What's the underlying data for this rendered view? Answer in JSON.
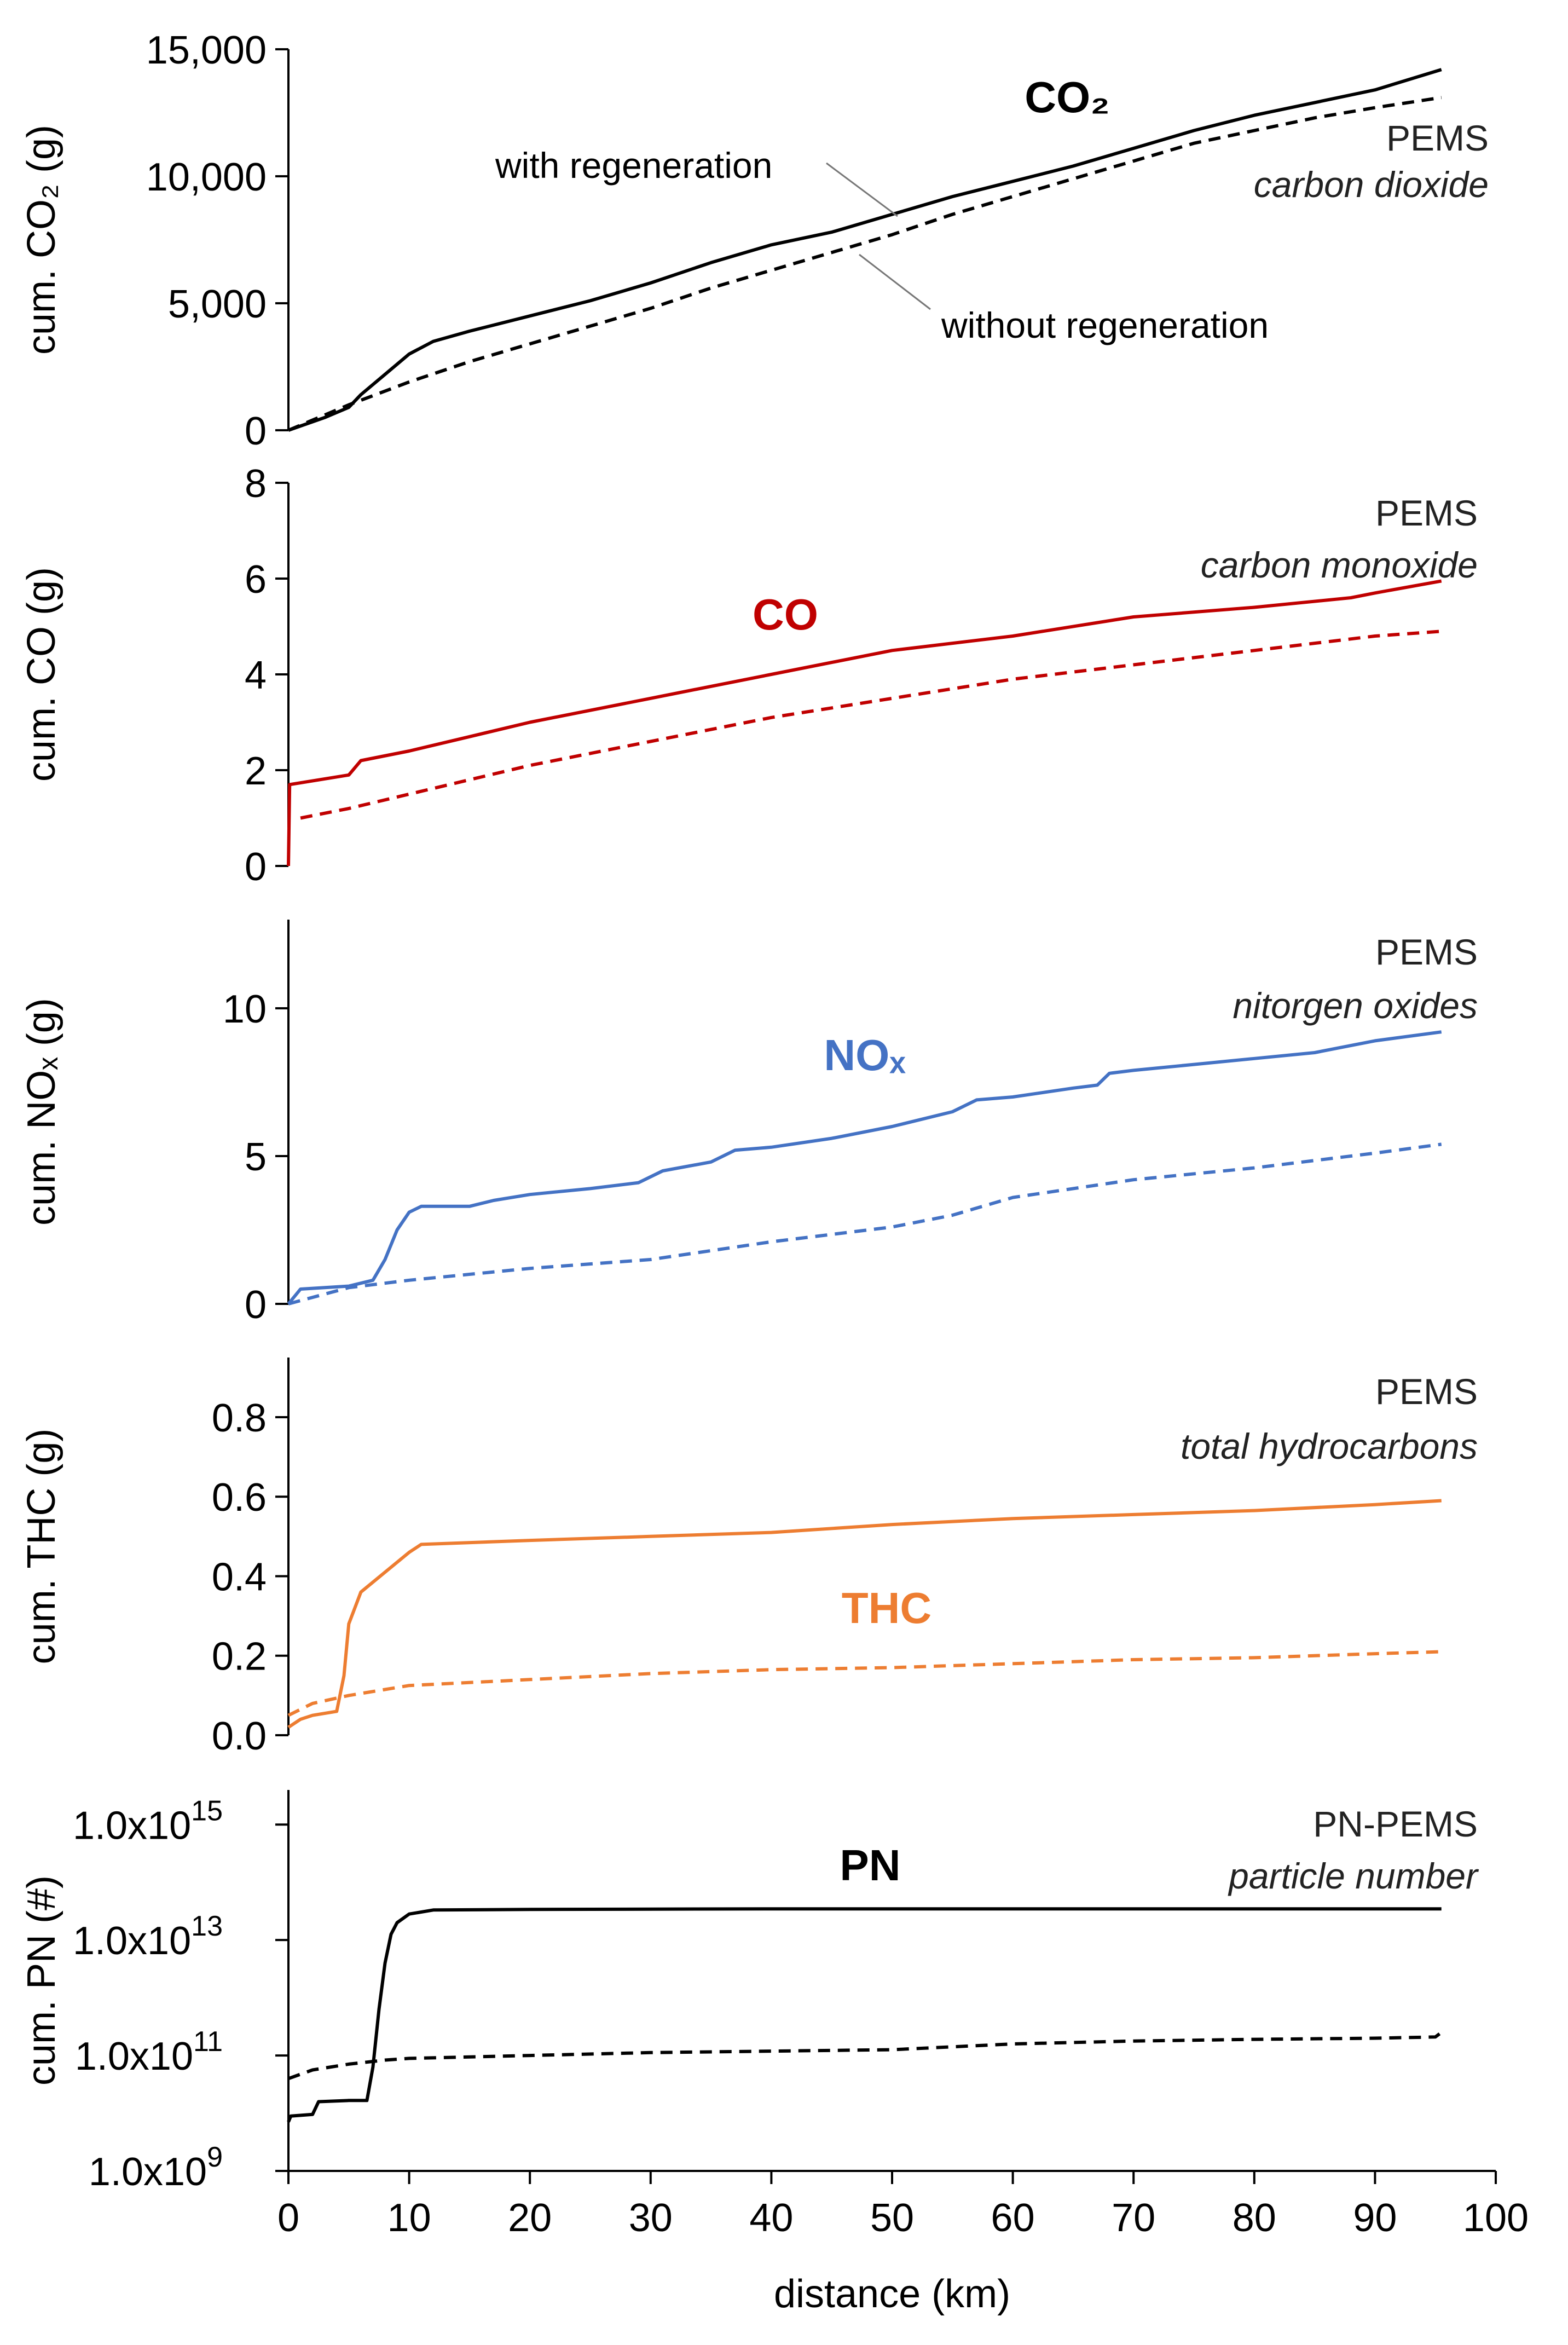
{
  "chart_data": {
    "type": "line",
    "xlabel": "distance (km)",
    "xlim": [
      0,
      100
    ],
    "xticks": [
      0,
      10,
      20,
      30,
      40,
      50,
      60,
      70,
      80,
      90,
      100
    ],
    "legend": {
      "with_label": "with regeneration",
      "without_label": "without regeneration"
    },
    "panels": [
      {
        "id": "co2",
        "ylabel": "cum. CO₂ (g)",
        "ylim": [
          0,
          15000
        ],
        "scale": "linear",
        "yticks": [
          "0",
          "5,000",
          "10,000",
          "15,000"
        ],
        "ytick_values": [
          0,
          5000,
          10000,
          15000
        ],
        "color": "#000000",
        "title": "CO₂",
        "source": "PEMS",
        "source_desc": "carbon dioxide",
        "series": [
          {
            "name": "with regeneration",
            "style": "solid",
            "x": [
              0,
              3,
              5,
              6,
              8,
              10,
              12,
              15,
              20,
              25,
              30,
              35,
              40,
              45,
              50,
              55,
              60,
              65,
              70,
              75,
              80,
              85,
              90,
              95.5
            ],
            "y": [
              0,
              500,
              900,
              1400,
              2200,
              3000,
              3500,
              3900,
              4500,
              5100,
              5800,
              6600,
              7300,
              7800,
              8500,
              9200,
              9800,
              10400,
              11100,
              11800,
              12400,
              12900,
              13400,
              14200
            ]
          },
          {
            "name": "without regeneration",
            "style": "dashed",
            "x": [
              0,
              5,
              10,
              15,
              20,
              25,
              30,
              35,
              40,
              45,
              50,
              55,
              60,
              65,
              70,
              75,
              80,
              85,
              90,
              95.5
            ],
            "y": [
              0,
              1000,
              1900,
              2700,
              3400,
              4100,
              4800,
              5600,
              6300,
              7000,
              7700,
              8500,
              9200,
              9900,
              10600,
              11300,
              11800,
              12300,
              12700,
              13100
            ]
          }
        ]
      },
      {
        "id": "co",
        "ylabel": "cum. CO (g)",
        "ylim": [
          0,
          8
        ],
        "scale": "linear",
        "yticks": [
          "0",
          "2",
          "4",
          "6",
          "8"
        ],
        "ytick_values": [
          0,
          2,
          4,
          6,
          8
        ],
        "color": "#c00000",
        "title": "CO",
        "source": "PEMS",
        "source_desc": "carbon monoxide",
        "series": [
          {
            "name": "with regeneration",
            "style": "solid",
            "x": [
              0,
              0.1,
              5,
              6,
              10,
              15,
              20,
              30,
              40,
              50,
              60,
              70,
              80,
              88,
              90,
              95.5
            ],
            "y": [
              0,
              1.7,
              1.9,
              2.2,
              2.4,
              2.7,
              3.0,
              3.5,
              4.0,
              4.5,
              4.8,
              5.2,
              5.4,
              5.6,
              5.7,
              5.95
            ]
          },
          {
            "name": "without regeneration",
            "style": "dashed",
            "x": [
              1,
              5,
              10,
              20,
              30,
              40,
              50,
              60,
              70,
              80,
              90,
              95.5
            ],
            "y": [
              1.0,
              1.2,
              1.5,
              2.1,
              2.6,
              3.1,
              3.5,
              3.9,
              4.2,
              4.5,
              4.8,
              4.9
            ]
          }
        ]
      },
      {
        "id": "nox",
        "ylabel": "cum. NOₓ (g)",
        "ylim": [
          0,
          13
        ],
        "scale": "linear",
        "yticks": [
          "0",
          "5",
          "10"
        ],
        "ytick_values": [
          0,
          5,
          10
        ],
        "color": "#4472c4",
        "title": "NOₓ",
        "source": "PEMS",
        "source_desc": "nitorgen oxides",
        "series": [
          {
            "name": "with regeneration",
            "style": "solid",
            "x": [
              0,
              1,
              5,
              7,
              8,
              9,
              10,
              11,
              12,
              15,
              17,
              20,
              25,
              29,
              31,
              35,
              37,
              40,
              45,
              50,
              55,
              57,
              60,
              65,
              67,
              68,
              70,
              75,
              80,
              85,
              90,
              95.5
            ],
            "y": [
              0,
              0.5,
              0.6,
              0.8,
              1.5,
              2.5,
              3.1,
              3.3,
              3.3,
              3.3,
              3.5,
              3.7,
              3.9,
              4.1,
              4.5,
              4.8,
              5.2,
              5.3,
              5.6,
              6.0,
              6.5,
              6.9,
              7.0,
              7.3,
              7.4,
              7.8,
              7.9,
              8.1,
              8.3,
              8.5,
              8.9,
              9.2
            ]
          },
          {
            "name": "without regeneration",
            "style": "dashed",
            "x": [
              0,
              5,
              10,
              20,
              30,
              40,
              50,
              55,
              60,
              70,
              80,
              90,
              95.5
            ],
            "y": [
              0,
              0.55,
              0.8,
              1.2,
              1.5,
              2.1,
              2.6,
              3.0,
              3.6,
              4.2,
              4.6,
              5.1,
              5.4
            ]
          }
        ]
      },
      {
        "id": "thc",
        "ylabel": "cum. THC (g)",
        "ylim": [
          0,
          0.95
        ],
        "scale": "linear",
        "yticks": [
          "0.0",
          "0.2",
          "0.4",
          "0.6",
          "0.8"
        ],
        "ytick_values": [
          0,
          0.2,
          0.4,
          0.6,
          0.8
        ],
        "color": "#ed7d31",
        "title": "THC",
        "source": "PEMS",
        "source_desc": "total hydrocarbons",
        "series": [
          {
            "name": "with regeneration",
            "style": "solid",
            "x": [
              0,
              1,
              2,
              4,
              4.6,
              5,
              6,
              8,
              10,
              11,
              20,
              30,
              40,
              50,
              60,
              70,
              80,
              90,
              95.5
            ],
            "y": [
              0.02,
              0.04,
              0.05,
              0.06,
              0.15,
              0.28,
              0.36,
              0.41,
              0.46,
              0.48,
              0.49,
              0.5,
              0.51,
              0.53,
              0.545,
              0.555,
              0.565,
              0.58,
              0.59
            ]
          },
          {
            "name": "without regeneration",
            "style": "dashed",
            "x": [
              0,
              2,
              5,
              10,
              20,
              30,
              40,
              50,
              60,
              70,
              80,
              90,
              95.5
            ],
            "y": [
              0.05,
              0.08,
              0.1,
              0.125,
              0.14,
              0.155,
              0.165,
              0.17,
              0.18,
              0.19,
              0.195,
              0.205,
              0.21
            ]
          }
        ]
      },
      {
        "id": "pn",
        "ylabel": "cum. PN (#)",
        "ylim": [
          9,
          15.6
        ],
        "scale": "log10",
        "yticks": [
          "1.0x10",
          "1.0x10",
          "1.0x10",
          "1.0x10"
        ],
        "ytick_exponents": [
          "9",
          "11",
          "13",
          "15"
        ],
        "ytick_values": [
          9,
          11,
          13,
          15
        ],
        "color": "#000000",
        "title": "PN",
        "source": "PN-PEMS",
        "source_desc": "particle number",
        "series": [
          {
            "name": "with regeneration",
            "style": "solid",
            "x": [
              0,
              0.2,
              2,
              2.5,
              5,
              6.5,
              7,
              7.5,
              8,
              8.5,
              9,
              10,
              12,
              20,
              40,
              60,
              80,
              95.5
            ],
            "y_log10": [
              9.85,
              9.95,
              9.98,
              10.2,
              10.22,
              10.22,
              10.8,
              11.8,
              12.6,
              13.1,
              13.3,
              13.45,
              13.52,
              13.53,
              13.54,
              13.54,
              13.54,
              13.54
            ]
          },
          {
            "name": "without regeneration",
            "style": "dashed",
            "x": [
              0,
              2,
              5,
              8,
              10,
              20,
              30,
              50,
              60,
              70,
              80,
              90,
              95,
              95.5
            ],
            "y_log10": [
              10.6,
              10.75,
              10.85,
              10.92,
              10.95,
              11.0,
              11.05,
              11.1,
              11.2,
              11.25,
              11.28,
              11.3,
              11.32,
              11.4
            ]
          }
        ]
      }
    ]
  }
}
